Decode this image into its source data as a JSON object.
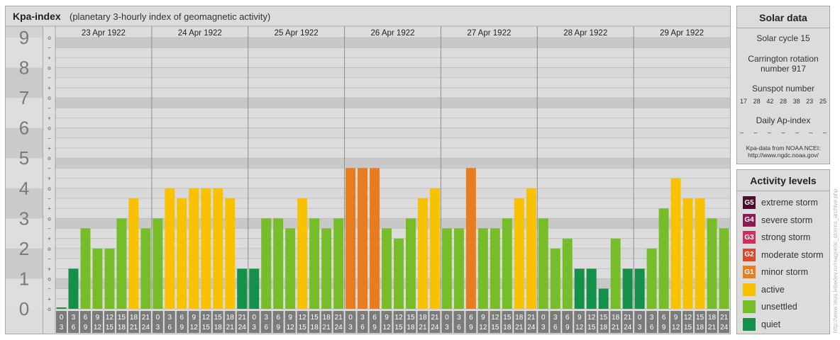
{
  "header": {
    "title": "Kpa-index",
    "subtitle": "(planetary 3-hourly index of geomagnetic activity)"
  },
  "chart_data": {
    "type": "bar",
    "title": "Kpa-index",
    "subtitle": "(planetary 3-hourly index of geomagnetic activity)",
    "y_ticks": [
      "0",
      "1",
      "2",
      "3",
      "4",
      "5",
      "6",
      "7",
      "8",
      "9"
    ],
    "ylim": [
      0,
      9.33
    ],
    "sub_ticks": [
      "o",
      "+",
      "−"
    ],
    "days": [
      "23 Apr 1922",
      "24 Apr 1922",
      "25 Apr 1922",
      "26 Apr 1922",
      "27 Apr 1922",
      "28 Apr 1922",
      "29 Apr 1922"
    ],
    "interval_start": [
      "0",
      "3",
      "6",
      "9",
      "12",
      "15",
      "18",
      "21"
    ],
    "interval_end": [
      "3",
      "6",
      "9",
      "12",
      "15",
      "18",
      "21",
      "24"
    ],
    "values": [
      [
        0.0,
        1.33,
        2.67,
        2.0,
        2.0,
        3.0,
        3.67,
        2.67
      ],
      [
        3.0,
        4.0,
        3.67,
        4.0,
        4.0,
        4.0,
        3.67,
        1.33
      ],
      [
        1.33,
        3.0,
        3.0,
        2.67,
        3.67,
        3.0,
        2.67,
        3.0
      ],
      [
        4.67,
        4.67,
        4.67,
        2.67,
        2.33,
        3.0,
        3.67,
        4.0
      ],
      [
        2.67,
        2.67,
        4.67,
        2.67,
        2.67,
        3.0,
        3.67,
        4.0
      ],
      [
        3.0,
        2.0,
        2.33,
        1.33,
        1.33,
        0.67,
        2.33,
        1.33
      ],
      [
        1.33,
        2.0,
        3.33,
        4.33,
        3.67,
        3.67,
        3.0,
        2.67
      ]
    ],
    "colors": {
      "quiet": "#14904a",
      "unsettled": "#77bd2a",
      "active": "#f8c200",
      "G1": "#e87c1e",
      "G2": "#d94a2c",
      "G3": "#c9315f",
      "G4": "#8c1c55",
      "G5": "#4c0c2c"
    }
  },
  "solar": {
    "title": "Solar data",
    "cycle": "Solar cycle 15",
    "carrington_line1": "Carrington rotation",
    "carrington_line2": "number 917",
    "sunspot_label": "Sunspot number",
    "sunspots": [
      "17",
      "28",
      "42",
      "28",
      "38",
      "23",
      "25"
    ],
    "ap_label": "Daily Ap-index",
    "ap_values": [
      "–",
      "–",
      "–",
      "–",
      "–",
      "–",
      "–"
    ],
    "source_line1": "Kpa-data from NOAA NCEI:",
    "source_line2": "http://www.ngdc.noaa.gov/"
  },
  "levels": {
    "title": "Activity levels",
    "items": [
      {
        "code": "G5",
        "label": "extreme storm",
        "color": "#4c0c2c"
      },
      {
        "code": "G4",
        "label": "severe storm",
        "color": "#8c1c55"
      },
      {
        "code": "G3",
        "label": "strong storm",
        "color": "#c9315f"
      },
      {
        "code": "G2",
        "label": "moderate storm",
        "color": "#d94a2c"
      },
      {
        "code": "G1",
        "label": "minor storm",
        "color": "#e87c1e"
      },
      {
        "code": "",
        "label": "active",
        "color": "#f8c200"
      },
      {
        "code": "",
        "label": "unsettled",
        "color": "#77bd2a"
      },
      {
        "code": "",
        "label": "quiet",
        "color": "#14904a"
      }
    ]
  },
  "copyright": "http://www.tesis.lebedev.ru/magnetic_storms_archive.php"
}
